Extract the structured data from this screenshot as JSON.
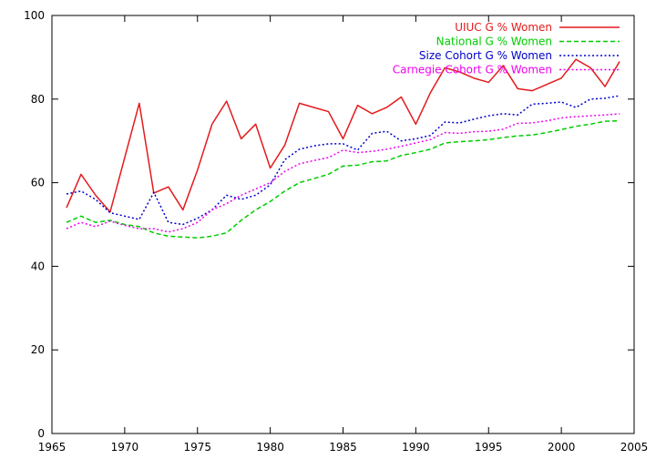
{
  "chart_data": {
    "type": "line",
    "title": "",
    "xlabel": "",
    "ylabel": "",
    "xlim": [
      1965,
      2005
    ],
    "ylim": [
      0,
      100
    ],
    "xticks": [
      1965,
      1970,
      1975,
      1980,
      1985,
      1990,
      1995,
      2000,
      2005
    ],
    "yticks": [
      0,
      20,
      40,
      60,
      80,
      100
    ],
    "grid": false,
    "legend": "top-right",
    "x": [
      1966,
      1967,
      1968,
      1969,
      1970,
      1971,
      1972,
      1973,
      1974,
      1975,
      1976,
      1977,
      1978,
      1979,
      1980,
      1981,
      1982,
      1983,
      1984,
      1985,
      1986,
      1987,
      1988,
      1989,
      1990,
      1991,
      1992,
      1993,
      1994,
      1995,
      1996,
      1997,
      1998,
      1999,
      2000,
      2001,
      2002,
      2003,
      2004
    ],
    "series": [
      {
        "name": "UIUC G % Women",
        "color": "#e41a1c",
        "dash": "solid",
        "values": [
          54,
          62,
          57,
          53,
          66,
          79,
          57.5,
          59,
          53.5,
          63,
          74,
          79.5,
          70.5,
          74,
          63.5,
          69,
          79,
          78,
          77,
          70.5,
          78.5,
          76.5,
          78,
          80.5,
          74,
          81.5,
          87.5,
          86.5,
          85,
          84,
          88,
          82.5,
          82,
          83.5,
          85,
          89.5,
          87.5,
          83,
          89
        ]
      },
      {
        "name": "National G % Women",
        "color": "#00cc00",
        "dash": "dashed",
        "values": [
          50.5,
          52,
          50.5,
          51,
          50,
          49.5,
          48,
          47.2,
          47,
          46.8,
          47.2,
          48,
          51,
          53.5,
          55.5,
          58,
          60,
          61,
          62,
          64,
          64.2,
          65,
          65.2,
          66.5,
          67.2,
          68,
          69.5,
          69.8,
          70,
          70.3,
          70.8,
          71.2,
          71.4,
          72,
          72.7,
          73.5,
          74,
          74.7,
          74.8
        ]
      },
      {
        "name": "Size Cohort G % Women",
        "color": "#0000cc",
        "dash": "dotted",
        "values": [
          57.3,
          58,
          56,
          52.8,
          52,
          51.2,
          57.7,
          50.5,
          50,
          51.5,
          53.5,
          57,
          56,
          57,
          59.5,
          65.5,
          68,
          68.8,
          69.3,
          69.3,
          67.8,
          71.8,
          72.3,
          70,
          70.5,
          71.3,
          74.5,
          74.3,
          75.2,
          76,
          76.5,
          76.2,
          78.8,
          79,
          79.3,
          78,
          80,
          80.2,
          80.8
        ]
      },
      {
        "name": "Carnegie Cohort G % Women",
        "color": "#ee00ee",
        "dash": "dotted",
        "values": [
          49,
          50.5,
          49.5,
          50.8,
          49.8,
          49,
          49,
          48.2,
          49,
          50.5,
          53.5,
          55,
          57,
          58.5,
          60,
          62.7,
          64.5,
          65.3,
          66,
          67.8,
          67.2,
          67.5,
          68,
          68.7,
          69.5,
          70.3,
          72,
          71.8,
          72.2,
          72.3,
          72.8,
          74.2,
          74.3,
          74.8,
          75.5,
          75.8,
          76,
          76.2,
          76.5
        ]
      }
    ]
  }
}
